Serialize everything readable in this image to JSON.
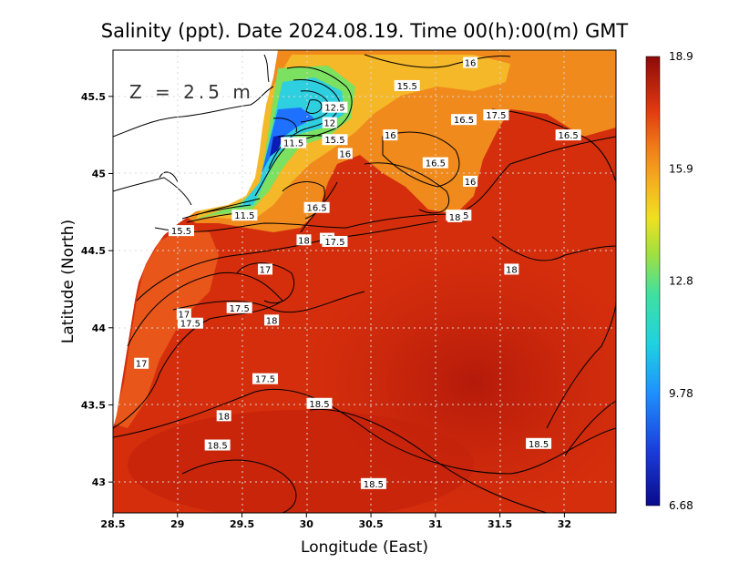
{
  "title": "Salinity (ppt). Date 2024.08.19. Time 00(h):00(m) GMT",
  "depth_label": "Z = 2.5 m",
  "x_axis": {
    "label": "Longitude (East)",
    "ticks": [
      "28.5",
      "29",
      "29.5",
      "30",
      "30.5",
      "31",
      "31.5",
      "32"
    ],
    "range": [
      28.5,
      32.4
    ]
  },
  "y_axis": {
    "label": "Latitude (North)",
    "ticks": [
      "43",
      "43.5",
      "44",
      "44.5",
      "45",
      "45.5"
    ],
    "range": [
      42.8,
      45.8
    ]
  },
  "colorbar": {
    "ticks": [
      "18.9",
      "15.9",
      "12.8",
      "9.78",
      "6.68"
    ],
    "min": 6.68,
    "max": 18.9
  },
  "contour_labels": [
    {
      "text": "16",
      "lon": 31.27,
      "lat": 45.72
    },
    {
      "text": "15.5",
      "lon": 30.78,
      "lat": 45.57
    },
    {
      "text": "12.5",
      "lon": 30.22,
      "lat": 45.43
    },
    {
      "text": "12",
      "lon": 30.18,
      "lat": 45.33
    },
    {
      "text": "16.5",
      "lon": 31.22,
      "lat": 45.35
    },
    {
      "text": "17.5",
      "lon": 31.47,
      "lat": 45.38
    },
    {
      "text": "11.5",
      "lon": 29.9,
      "lat": 45.2
    },
    {
      "text": "15.5",
      "lon": 30.22,
      "lat": 45.22
    },
    {
      "text": "16",
      "lon": 30.65,
      "lat": 45.25
    },
    {
      "text": "16.5",
      "lon": 32.03,
      "lat": 45.25
    },
    {
      "text": "16",
      "lon": 30.3,
      "lat": 45.13
    },
    {
      "text": "16.5",
      "lon": 31.0,
      "lat": 45.07
    },
    {
      "text": "16",
      "lon": 31.27,
      "lat": 44.95
    },
    {
      "text": "16.5",
      "lon": 30.08,
      "lat": 44.78
    },
    {
      "text": "11.5",
      "lon": 29.52,
      "lat": 44.73
    },
    {
      "text": "16.5",
      "lon": 31.18,
      "lat": 44.73
    },
    {
      "text": "18",
      "lon": 31.15,
      "lat": 44.72
    },
    {
      "text": "15.5",
      "lon": 29.03,
      "lat": 44.63
    },
    {
      "text": "18",
      "lon": 29.98,
      "lat": 44.57
    },
    {
      "text": "17",
      "lon": 30.16,
      "lat": 44.58
    },
    {
      "text": "17.5",
      "lon": 30.22,
      "lat": 44.56
    },
    {
      "text": "17",
      "lon": 29.68,
      "lat": 44.38
    },
    {
      "text": "18",
      "lon": 31.59,
      "lat": 44.38
    },
    {
      "text": "17.5",
      "lon": 29.48,
      "lat": 44.13
    },
    {
      "text": "17",
      "lon": 29.05,
      "lat": 44.09
    },
    {
      "text": "17.5",
      "lon": 29.1,
      "lat": 44.03
    },
    {
      "text": "18",
      "lon": 29.73,
      "lat": 44.05
    },
    {
      "text": "17",
      "lon": 28.72,
      "lat": 43.77
    },
    {
      "text": "17.5",
      "lon": 29.68,
      "lat": 43.67
    },
    {
      "text": "18.5",
      "lon": 30.1,
      "lat": 43.51
    },
    {
      "text": "18",
      "lon": 29.36,
      "lat": 43.43
    },
    {
      "text": "18.5",
      "lon": 29.31,
      "lat": 43.24
    },
    {
      "text": "18.5",
      "lon": 31.8,
      "lat": 43.25
    },
    {
      "text": "18.5",
      "lon": 30.52,
      "lat": 42.99
    }
  ],
  "colors": {
    "sea_base": "#d42e0c",
    "land": "#ffffff",
    "contour": "#000000",
    "grid": "#c8c8c8"
  }
}
